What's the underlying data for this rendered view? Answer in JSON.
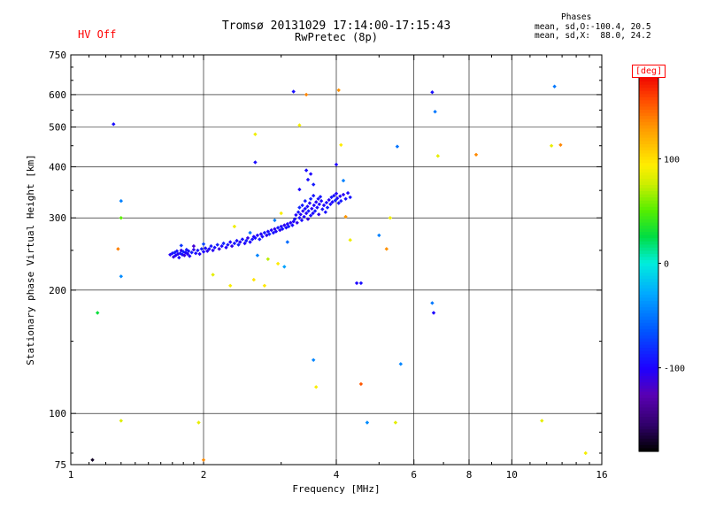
{
  "header": {
    "hv_status": "HV Off",
    "title_line1": "Tromsø 20131029 17:14:00-17:15:43",
    "title_line2": "RwPretec (8p)",
    "phases_title": "Phases",
    "phases_line1": "mean, sd,O:-100.4, 20.5",
    "phases_line2": "mean, sd,X:  88.0, 24.2"
  },
  "chart_data": {
    "type": "scatter",
    "title": "Tromsø 20131029 17:14:00-17:15:43 RwPretec (8p)",
    "xlabel": "Frequency [MHz]",
    "ylabel": "Stationary phase Virtual Height [km]",
    "x_scale": "log",
    "y_scale": "log",
    "xlim": [
      1,
      16
    ],
    "ylim": [
      75,
      750
    ],
    "grid": true,
    "x_ticks": [
      {
        "v": 1,
        "label": "1",
        "grid": false
      },
      {
        "v": 2,
        "label": "2",
        "grid": true
      },
      {
        "v": 4,
        "label": "4",
        "grid": true
      },
      {
        "v": 6,
        "label": "6",
        "grid": true
      },
      {
        "v": 8,
        "label": "8",
        "grid": true
      },
      {
        "v": 10,
        "label": "10",
        "grid": true
      },
      {
        "v": 16,
        "label": "16",
        "grid": false
      }
    ],
    "x_minor": [
      1.1,
      1.2,
      1.3,
      1.4,
      1.5,
      1.6,
      1.7,
      1.8,
      1.9,
      3,
      5,
      7,
      9,
      11,
      12,
      13,
      14,
      15
    ],
    "y_ticks": [
      {
        "v": 75,
        "label": "75",
        "grid": false
      },
      {
        "v": 100,
        "label": "100",
        "grid": true
      },
      {
        "v": 200,
        "label": "200",
        "grid": true
      },
      {
        "v": 300,
        "label": "300",
        "grid": true
      },
      {
        "v": 400,
        "label": "400",
        "grid": true
      },
      {
        "v": 500,
        "label": "500",
        "grid": true
      },
      {
        "v": 600,
        "label": "600",
        "grid": true
      },
      {
        "v": 750,
        "label": "750",
        "grid": false
      }
    ],
    "y_minor": [
      80,
      90,
      150,
      250,
      350,
      450,
      550,
      650,
      700
    ],
    "colorbar": {
      "label": "[deg]",
      "range": [
        -180,
        180
      ],
      "ticks": [
        {
          "v": 100,
          "label": "100"
        },
        {
          "v": 0,
          "label": "0"
        },
        {
          "v": -100,
          "label": "-100"
        }
      ],
      "stops": [
        [
          0,
          "#000000"
        ],
        [
          0.07,
          "#30006a"
        ],
        [
          0.15,
          "#5a00b4"
        ],
        [
          0.22,
          "#1e00ff"
        ],
        [
          0.32,
          "#0055ff"
        ],
        [
          0.42,
          "#00aaff"
        ],
        [
          0.5,
          "#00eedd"
        ],
        [
          0.57,
          "#00dd44"
        ],
        [
          0.64,
          "#55ee00"
        ],
        [
          0.71,
          "#ccee00"
        ],
        [
          0.76,
          "#ffee00"
        ],
        [
          0.86,
          "#ff9900"
        ],
        [
          0.94,
          "#ff4400"
        ],
        [
          1,
          "#ee0000"
        ]
      ]
    },
    "points_format": [
      "frequency_MHz",
      "virtual_height_km",
      "phase_deg"
    ],
    "points": [
      [
        1.68,
        244,
        -102
      ],
      [
        1.7,
        246,
        -95
      ],
      [
        1.71,
        241,
        -110
      ],
      [
        1.72,
        247,
        -88
      ],
      [
        1.73,
        243,
        -100
      ],
      [
        1.74,
        249,
        -93
      ],
      [
        1.75,
        245,
        -105
      ],
      [
        1.76,
        240,
        -99
      ],
      [
        1.77,
        246,
        -91
      ],
      [
        1.78,
        250,
        -107
      ],
      [
        1.79,
        244,
        -96
      ],
      [
        1.8,
        248,
        -85
      ],
      [
        1.81,
        243,
        -112
      ],
      [
        1.82,
        247,
        -98
      ],
      [
        1.83,
        251,
        -90
      ],
      [
        1.84,
        245,
        -104
      ],
      [
        1.85,
        249,
        -94
      ],
      [
        1.86,
        242,
        -101
      ],
      [
        1.88,
        247,
        -89
      ],
      [
        1.9,
        251,
        -108
      ],
      [
        1.92,
        246,
        -97
      ],
      [
        1.94,
        250,
        -92
      ],
      [
        1.96,
        245,
        -103
      ],
      [
        1.98,
        252,
        -87
      ],
      [
        2.0,
        248,
        -99
      ],
      [
        2.02,
        253,
        -95
      ],
      [
        2.04,
        249,
        -106
      ],
      [
        1.78,
        257,
        -78
      ],
      [
        1.9,
        256,
        -115
      ],
      [
        2.0,
        259,
        -72
      ],
      [
        2.06,
        252,
        -98
      ],
      [
        2.08,
        256,
        -90
      ],
      [
        2.1,
        250,
        -105
      ],
      [
        2.12,
        254,
        -95
      ],
      [
        2.15,
        258,
        -88
      ],
      [
        2.17,
        252,
        -110
      ],
      [
        2.2,
        256,
        -97
      ],
      [
        2.22,
        260,
        -85
      ],
      [
        2.25,
        254,
        -102
      ],
      [
        2.27,
        258,
        -93
      ],
      [
        2.3,
        262,
        -99
      ],
      [
        2.32,
        256,
        -107
      ],
      [
        2.35,
        260,
        -91
      ],
      [
        2.38,
        264,
        -96
      ],
      [
        2.4,
        258,
        -86
      ],
      [
        2.42,
        262,
        -104
      ],
      [
        2.45,
        266,
        -94
      ],
      [
        2.48,
        260,
        -100
      ],
      [
        2.5,
        264,
        -89
      ],
      [
        2.52,
        268,
        -108
      ],
      [
        2.55,
        262,
        -98
      ],
      [
        2.58,
        266,
        -92
      ],
      [
        2.6,
        270,
        -101
      ],
      [
        2.65,
        243,
        -45
      ],
      [
        2.8,
        238,
        72
      ],
      [
        2.95,
        232,
        95
      ],
      [
        3.05,
        228,
        -32
      ],
      [
        2.62,
        268,
        -95
      ],
      [
        2.65,
        272,
        -100
      ],
      [
        2.68,
        266,
        -88
      ],
      [
        2.7,
        274,
        -103
      ],
      [
        2.72,
        270,
        -96
      ],
      [
        2.75,
        276,
        -91
      ],
      [
        2.78,
        272,
        -105
      ],
      [
        2.8,
        278,
        -99
      ],
      [
        2.82,
        274,
        -86
      ],
      [
        2.85,
        280,
        -102
      ],
      [
        2.88,
        276,
        -94
      ],
      [
        2.9,
        282,
        -108
      ],
      [
        2.92,
        278,
        -97
      ],
      [
        2.95,
        284,
        -90
      ],
      [
        2.98,
        280,
        -104
      ],
      [
        3.0,
        286,
        -98
      ],
      [
        3.02,
        282,
        -92
      ],
      [
        3.05,
        288,
        -106
      ],
      [
        3.08,
        284,
        -95
      ],
      [
        3.1,
        290,
        -100
      ],
      [
        3.12,
        286,
        -89
      ],
      [
        3.15,
        292,
        -103
      ],
      [
        3.18,
        288,
        -96
      ],
      [
        3.2,
        294,
        -101
      ],
      [
        2.55,
        276,
        -52
      ],
      [
        2.35,
        286,
        88
      ],
      [
        2.9,
        296,
        -48
      ],
      [
        3.0,
        308,
        92
      ],
      [
        3.1,
        262,
        -55
      ],
      [
        3.22,
        298,
        -94
      ],
      [
        3.24,
        305,
        -99
      ],
      [
        3.26,
        292,
        -107
      ],
      [
        3.28,
        310,
        -92
      ],
      [
        3.3,
        300,
        -98
      ],
      [
        3.3,
        318,
        -85
      ],
      [
        3.32,
        306,
        -103
      ],
      [
        3.34,
        296,
        -96
      ],
      [
        3.35,
        322,
        -90
      ],
      [
        3.36,
        312,
        -105
      ],
      [
        3.38,
        302,
        -100
      ],
      [
        3.4,
        316,
        -93
      ],
      [
        3.4,
        330,
        -88
      ],
      [
        3.42,
        308,
        -102
      ],
      [
        3.44,
        320,
        -97
      ],
      [
        3.45,
        298,
        -110
      ],
      [
        3.46,
        312,
        -91
      ],
      [
        3.48,
        326,
        -99
      ],
      [
        3.5,
        304,
        -95
      ],
      [
        3.5,
        334,
        -86
      ],
      [
        3.52,
        316,
        -104
      ],
      [
        3.54,
        308,
        -98
      ],
      [
        3.55,
        340,
        -92
      ],
      [
        3.56,
        322,
        -100
      ],
      [
        3.58,
        312,
        -89
      ],
      [
        3.6,
        328,
        -103
      ],
      [
        3.62,
        318,
        -96
      ],
      [
        3.64,
        334,
        -94
      ],
      [
        3.65,
        306,
        -107
      ],
      [
        3.66,
        324,
        -99
      ],
      [
        3.68,
        338,
        -91
      ],
      [
        3.7,
        330,
        -97
      ],
      [
        3.3,
        352,
        -98
      ],
      [
        3.42,
        392,
        -96
      ],
      [
        3.45,
        372,
        -95
      ],
      [
        3.5,
        384,
        -101
      ],
      [
        3.55,
        362,
        -90
      ],
      [
        3.72,
        315,
        -95
      ],
      [
        3.75,
        322,
        -101
      ],
      [
        3.78,
        310,
        -93
      ],
      [
        3.8,
        327,
        -98
      ],
      [
        3.82,
        318,
        -88
      ],
      [
        3.85,
        332,
        -104
      ],
      [
        3.88,
        324,
        -96
      ],
      [
        3.9,
        337,
        -91
      ],
      [
        3.92,
        328,
        -100
      ],
      [
        3.95,
        340,
        -95
      ],
      [
        3.98,
        331,
        -87
      ],
      [
        4.0,
        344,
        -102
      ],
      [
        4.02,
        335,
        -97
      ],
      [
        4.05,
        326,
        -93
      ],
      [
        4.08,
        339,
        -99
      ],
      [
        4.1,
        330,
        -90
      ],
      [
        4.15,
        342,
        -105
      ],
      [
        4.2,
        334,
        -94
      ],
      [
        4.25,
        345,
        -98
      ],
      [
        4.3,
        337,
        -92
      ],
      [
        1.12,
        77,
        -172
      ],
      [
        1.25,
        508,
        -95
      ],
      [
        1.3,
        96,
        82
      ],
      [
        1.15,
        176,
        28
      ],
      [
        1.3,
        300,
        52
      ],
      [
        1.28,
        252,
        138
      ],
      [
        1.3,
        216,
        -42
      ],
      [
        1.3,
        330,
        -46
      ],
      [
        1.95,
        95,
        86
      ],
      [
        2.0,
        77,
        134
      ],
      [
        2.1,
        218,
        84
      ],
      [
        2.3,
        205,
        92
      ],
      [
        2.6,
        212,
        98
      ],
      [
        2.62,
        480,
        88
      ],
      [
        2.62,
        410,
        -96
      ],
      [
        2.75,
        205,
        96
      ],
      [
        3.2,
        610,
        -95
      ],
      [
        3.3,
        505,
        90
      ],
      [
        3.42,
        600,
        136
      ],
      [
        3.55,
        135,
        -44
      ],
      [
        3.6,
        116,
        92
      ],
      [
        4.05,
        615,
        132
      ],
      [
        4.1,
        452,
        94
      ],
      [
        4.0,
        405,
        -100
      ],
      [
        4.15,
        370,
        -46
      ],
      [
        4.2,
        302,
        130
      ],
      [
        4.3,
        265,
        88
      ],
      [
        4.45,
        208,
        -100
      ],
      [
        4.55,
        208,
        -95
      ],
      [
        4.55,
        118,
        152
      ],
      [
        4.7,
        95,
        -42
      ],
      [
        5.0,
        272,
        -46
      ],
      [
        5.2,
        252,
        132
      ],
      [
        5.3,
        300,
        88
      ],
      [
        5.5,
        448,
        -52
      ],
      [
        5.6,
        132,
        -44
      ],
      [
        5.45,
        95,
        84
      ],
      [
        6.6,
        608,
        -95
      ],
      [
        6.7,
        545,
        -50
      ],
      [
        6.8,
        425,
        85
      ],
      [
        6.6,
        186,
        -50
      ],
      [
        6.65,
        176,
        -100
      ],
      [
        8.3,
        428,
        135
      ],
      [
        11.7,
        96,
        85
      ],
      [
        12.5,
        628,
        -50
      ],
      [
        12.3,
        450,
        86
      ],
      [
        12.9,
        452,
        136
      ],
      [
        14.7,
        80,
        90
      ]
    ]
  }
}
